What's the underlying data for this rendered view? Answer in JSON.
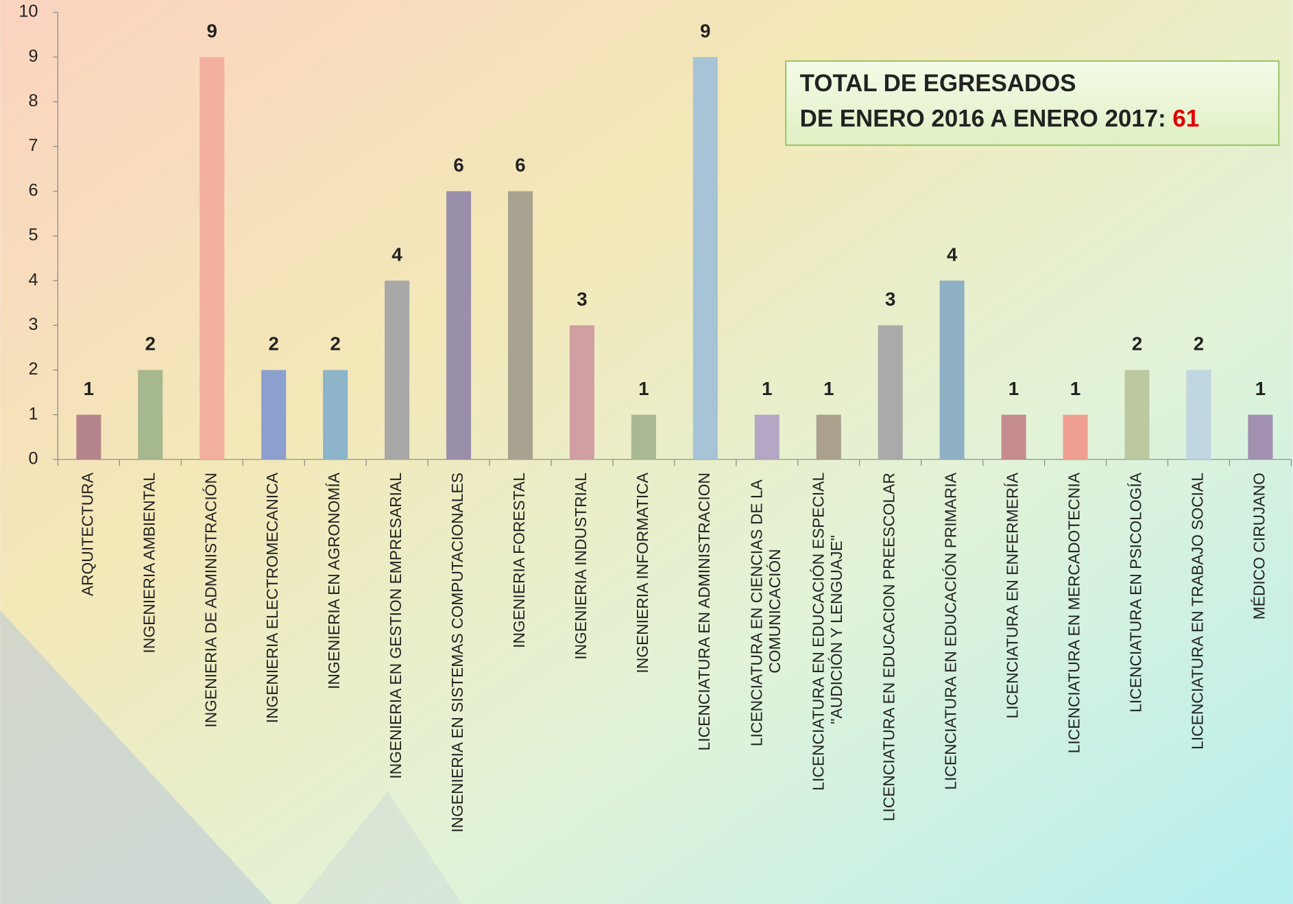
{
  "chart_data": {
    "type": "bar",
    "categories": [
      "ARQUITECTURA",
      "INGENIERIA AMBIENTAL",
      "INGENIERIA DE ADMINISTRACIÓN",
      "INGENIERIA ELECTROMECANICA",
      "INGENIERIA EN AGRONOMÍA",
      "INGENIERIA EN GESTION EMPRESARIAL",
      "INGENIERIA EN SISTEMAS COMPUTACIONALES",
      "INGENIERIA FORESTAL",
      "INGENIERIA INDUSTRIAL",
      "INGENIERIA INFORMATICA",
      "LICENCIATURA EN ADMINISTRACION",
      "LICENCIATURA EN CIENCIAS DE LA COMUNICACIÓN",
      "LICENCIATURA EN EDUCACIÓN ESPECIAL \"AUDICIÓN Y LENGUAJE\"",
      "LICENCIATURA EN EDUCACION PREESCOLAR",
      "LICENCIATURA EN EDUCACIÓN PRIMARIA",
      "LICENCIATURA EN ENFERMERÍA",
      "LICENCIATURA EN MERCADOTECNIA",
      "LICENCIATURA EN PSICOLOGÍA",
      "LICENCIATURA EN TRABAJO SOCIAL",
      "MÉDICO CIRUJANO"
    ],
    "values": [
      1,
      2,
      9,
      2,
      2,
      4,
      6,
      6,
      3,
      1,
      9,
      1,
      1,
      3,
      4,
      1,
      1,
      2,
      2,
      1
    ],
    "colors": [
      "#b5858c",
      "#a5b88e",
      "#f4b09e",
      "#8ba0cf",
      "#8db4c9",
      "#a8a8a8",
      "#9a8faa",
      "#a8a290",
      "#d19fa3",
      "#a9b993",
      "#a6c4d6",
      "#b4a6c4",
      "#aaa08c",
      "#aaaaaa",
      "#8fb0c4",
      "#c58c8f",
      "#f0a090",
      "#bcc8a0",
      "#c0d6e0",
      "#a290b0"
    ],
    "ylim": [
      0,
      10
    ],
    "yticks": [
      0,
      1,
      2,
      3,
      4,
      5,
      6,
      7,
      8,
      9,
      10
    ],
    "annotation": {
      "line1": "TOTAL DE EGRESADOS",
      "line2": "DE ENERO 2016 A ENERO 2017:",
      "total": 61
    }
  }
}
